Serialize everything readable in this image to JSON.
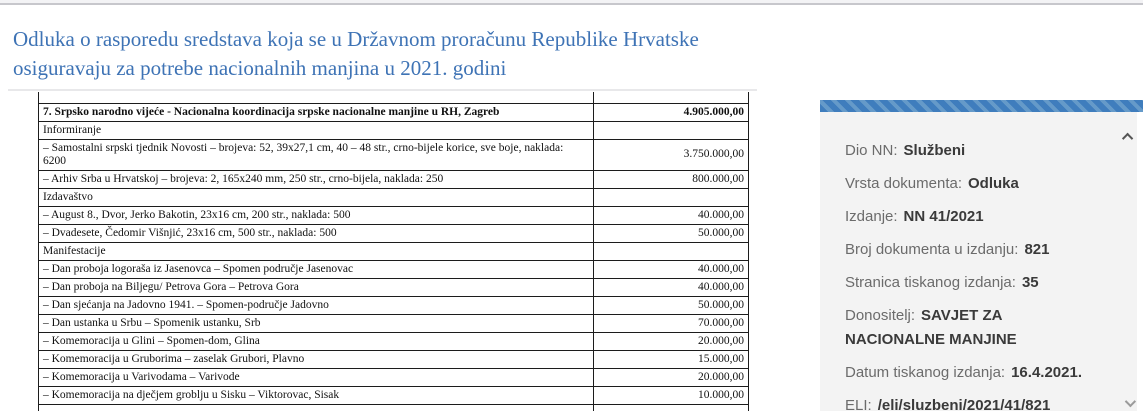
{
  "page": {
    "title": "Odluka o rasporedu sredstava koja se u Državnom proračunu Republike Hrvatske osiguravaju za potrebe nacionalnih manjina u 2021. godini"
  },
  "colors": {
    "title_blue": "#3e73b5",
    "sidebar_band_blue": "#3f7dbd",
    "sidebar_band_blue_light": "#659ac9",
    "sidebar_panel_bg": "#f3f3f3",
    "table_border": "#1c1c1c"
  },
  "table": {
    "rows": [
      {
        "label": "7. Srpsko narodno vijeće - Nacionalna koordinacija srpske nacionalne manjine u RH, Zagreb",
        "amount": "4.905.000,00",
        "bold": true
      },
      {
        "label": "Informiranje",
        "amount": ""
      },
      {
        "label": "– Samostalni srpski tjednik Novosti – brojeva: 52, 39x27,1 cm, 40 – 48 str., crno-bijele korice, sve boje, naklada: 6200",
        "amount": "3.750.000,00"
      },
      {
        "label": "– Arhiv Srba u Hrvatskoj – brojeva: 2, 165x240 mm, 250 str., crno-bijela, naklada: 250",
        "amount": "800.000,00"
      },
      {
        "label": "Izdavaštvo",
        "amount": ""
      },
      {
        "label": "– August 8., Dvor, Jerko Bakotin, 23x16 cm, 200 str., naklada: 500",
        "amount": "40.000,00"
      },
      {
        "label": "– Dvadesete, Čedomir Višnjić, 23x16 cm, 500 str., naklada: 500",
        "amount": "50.000,00"
      },
      {
        "label": "Manifestacije",
        "amount": ""
      },
      {
        "label": "– Dan proboja logoraša iz Jasenovca – Spomen područje Jasenovac",
        "amount": "40.000,00"
      },
      {
        "label": "– Dan proboja na Biljegu/ Petrova Gora – Petrova Gora",
        "amount": "40.000,00"
      },
      {
        "label": "– Dan sjećanja na Jadovno 1941. – Spomen-područje Jadovno",
        "amount": "50.000,00"
      },
      {
        "label": "– Dan ustanka u Srbu – Spomenik ustanku, Srb",
        "amount": "70.000,00"
      },
      {
        "label": "– Komemoracija u Glini – Spomen-dom, Glina",
        "amount": "20.000,00"
      },
      {
        "label": "– Komemoracija u Gruborima – zaselak Grubori, Plavno",
        "amount": "15.000,00"
      },
      {
        "label": "– Komemoracija u Varivodama – Varivode",
        "amount": "20.000,00"
      },
      {
        "label": "– Komemoracija na dječjem groblju u Sisku – Viktorovac, Sisak",
        "amount": "10.000,00"
      }
    ]
  },
  "sidebar": {
    "fields": [
      {
        "label": "Dio NN:",
        "value": "Službeni"
      },
      {
        "label": "Vrsta dokumenta:",
        "value": "Odluka"
      },
      {
        "label": "Izdanje:",
        "value": "NN 41/2021"
      },
      {
        "label": "Broj dokumenta u izdanju:",
        "value": "821"
      },
      {
        "label": "Stranica tiskanog izdanja:",
        "value": "35"
      },
      {
        "label": "Donositelj:",
        "value": "SAVJET ZA NACIONALNE MANJINE"
      },
      {
        "label": "Datum tiskanog izdanja:",
        "value": "16.4.2021."
      },
      {
        "label": "ELI:",
        "value": "/eli/sluzbeni/2021/41/821"
      }
    ]
  }
}
